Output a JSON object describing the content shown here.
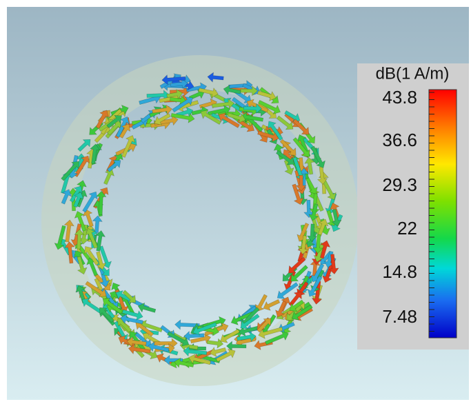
{
  "colorbar": {
    "title": "dB(1 A/m)",
    "ticks": [
      43.8,
      36.6,
      29.3,
      22,
      14.8,
      7.48
    ]
  }
}
